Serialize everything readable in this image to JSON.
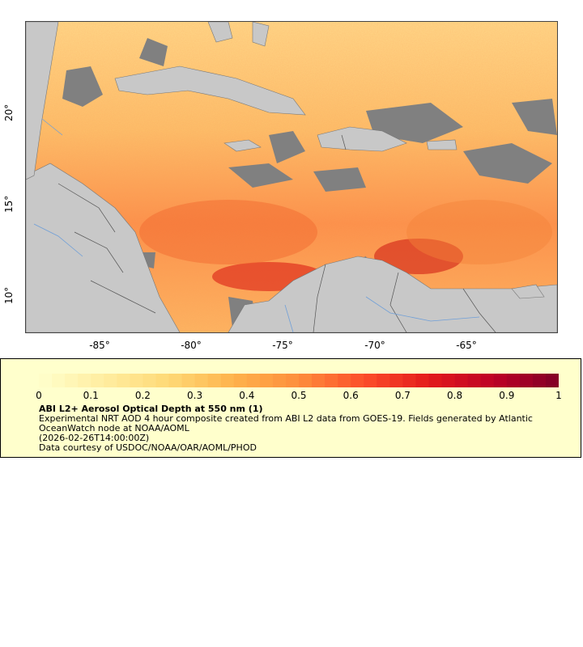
{
  "map": {
    "x_ticks": [
      "-85°",
      "-80°",
      "-75°",
      "-70°",
      "-65°"
    ],
    "y_ticks": [
      "20°",
      "15°",
      "10°"
    ]
  },
  "colorbar": {
    "ticks": [
      "0",
      "0.1",
      "0.2",
      "0.3",
      "0.4",
      "0.5",
      "0.6",
      "0.7",
      "0.8",
      "0.9",
      "1"
    ],
    "colors": [
      "#ffffcc",
      "#ffeda0",
      "#fed976",
      "#feb24c",
      "#fd8d3c",
      "#fc4e2a",
      "#e31a1c",
      "#bd0026",
      "#800026"
    ]
  },
  "legend": {
    "title": "ABI L2+ Aerosol Optical Depth at 550 nm (1)",
    "description": "Experimental NRT AOD 4 hour composite created from ABI L2 data from GOES-19. Fields generated by Atlantic OceanWatch node at NOAA/AOML",
    "timestamp": "(2026-02-26T14:00:00Z)",
    "credit": "Data courtesy of USDOC/NOAA/OAR/AOML/PHOD"
  },
  "colors": {
    "land": "#c8c8c8",
    "missing": "#808080",
    "rivers": "#6f9fd8",
    "borders": "#555555"
  }
}
